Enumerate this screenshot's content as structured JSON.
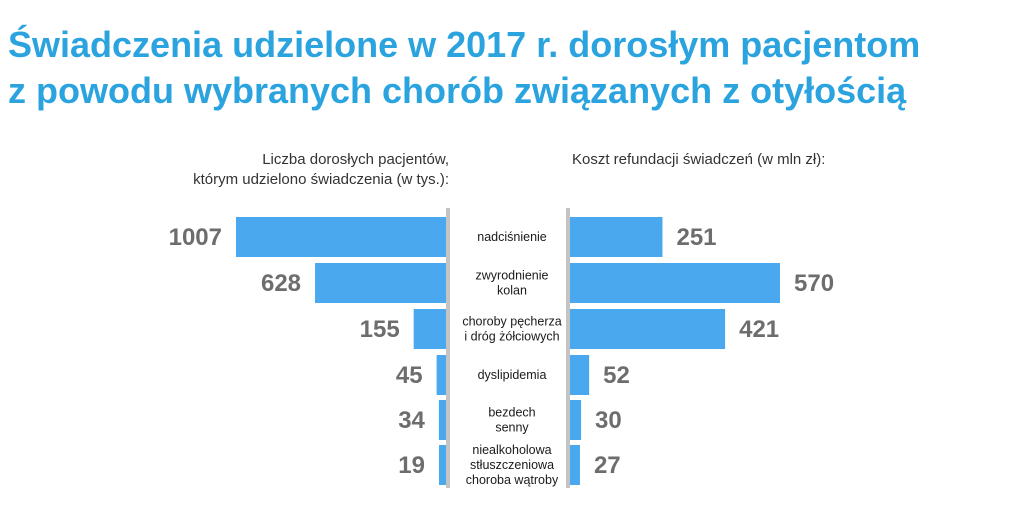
{
  "title": {
    "line1": "Świadczenia udzielone w 2017 r. dorosłym pacjentom",
    "line2": "z powodu wybranych chorób związanych z otyłością"
  },
  "left_header": {
    "line1": "Liczba dorosłych pacjentów,",
    "line2": "którym udzielono świadczenia (w tys.):"
  },
  "right_header": {
    "line1": "Koszt refundacji świadczeń (w mln zł):"
  },
  "colors": {
    "bar": "#4aa8ef",
    "title": "#2aa3df",
    "value": "#6d6d6d",
    "divider": "#c4c4c4"
  },
  "chart_data": {
    "type": "bar",
    "orientation": "horizontal-butterfly",
    "categories": [
      [
        "nadciśnienie"
      ],
      [
        "zwyrodnienie",
        "kolan"
      ],
      [
        "choroby pęcherza",
        "i dróg żółciowych"
      ],
      [
        "dyslipidemia"
      ],
      [
        "bezdech",
        "senny"
      ],
      [
        "niealkoholowa",
        "stłuszczeniowa",
        "choroba wątroby"
      ]
    ],
    "series": [
      {
        "values": [
          1007,
          628,
          155,
          45,
          34,
          19
        ]
      },
      {
        "values": [
          251,
          570,
          421,
          52,
          30,
          27
        ]
      }
    ],
    "grid": false,
    "legend": "none"
  }
}
